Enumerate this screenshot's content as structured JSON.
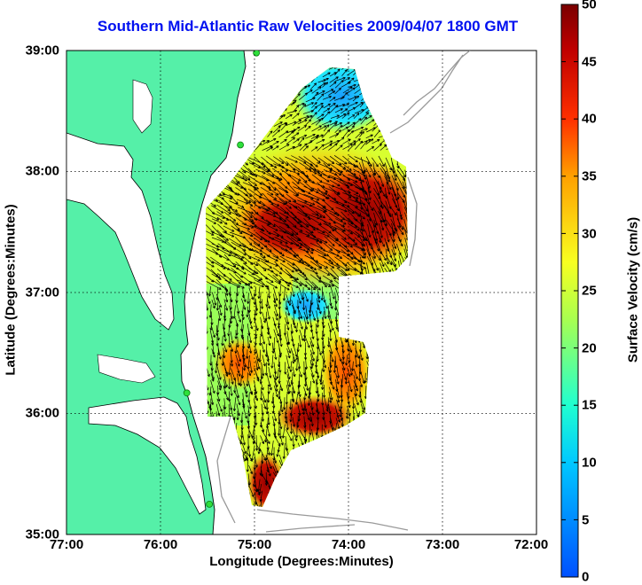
{
  "title": "Southern Mid-Atlantic Raw Velocities 2009/04/07 1800 GMT",
  "axes": {
    "xlabel": "Longitude (Degrees:Minutes)",
    "ylabel": "Latitude (Degrees:Minutes)",
    "x_ticks": [
      "77:00",
      "76:00",
      "75:00",
      "74:00",
      "73:00",
      "72:00"
    ],
    "y_ticks": [
      "39:00",
      "38:00",
      "37:00",
      "36:00",
      "35:00"
    ],
    "grid": "dotted"
  },
  "colorbar": {
    "label": "Surface Velocity (cm/s)",
    "ticks": [
      "50",
      "45",
      "40",
      "35",
      "30",
      "25",
      "20",
      "15",
      "10",
      "5",
      "0"
    ],
    "range": [
      0,
      50
    ]
  },
  "colors": {
    "title": "#0010f0",
    "land": "#55f0a8",
    "coast_line": "#000000",
    "bathymetry_line": "#9a9a9a",
    "station_marker": "#2ee03c"
  },
  "stations": [
    {
      "lon": -74.98,
      "lat": 38.98
    },
    {
      "lon": -75.15,
      "lat": 38.22
    },
    {
      "lon": -75.72,
      "lat": 36.17
    },
    {
      "lon": -75.48,
      "lat": 35.25
    }
  ],
  "velocity_field": {
    "units": "cm/s",
    "regions": [
      {
        "name": "north",
        "lon": [
          -74.3,
          -73.7
        ],
        "lat": [
          38.4,
          38.85
        ],
        "speed": 8
      },
      {
        "name": "core",
        "lon": [
          -74.3,
          -73.3
        ],
        "lat": [
          37.4,
          38.1
        ],
        "speed": 45
      },
      {
        "name": "west-core",
        "lon": [
          -75.2,
          -74.5
        ],
        "lat": [
          37.35,
          37.95
        ],
        "speed": 40
      },
      {
        "name": "mid",
        "lon": [
          -74.8,
          -74.4
        ],
        "lat": [
          36.95,
          37.15
        ],
        "speed": 12
      },
      {
        "name": "southeast",
        "lon": [
          -74.2,
          -73.9
        ],
        "lat": [
          36.2,
          36.6
        ],
        "speed": 38
      },
      {
        "name": "cape",
        "lon": [
          -75.05,
          -74.95
        ],
        "lat": [
          35.25,
          35.45
        ],
        "speed": 40
      }
    ]
  }
}
